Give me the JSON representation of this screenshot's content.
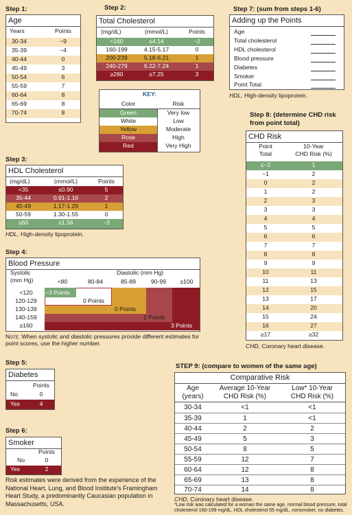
{
  "step1": {
    "heading": "Step 1:",
    "title": "Age",
    "col_years": "Years",
    "col_points": "Points",
    "rows": [
      {
        "range": "30-34",
        "points": "−9"
      },
      {
        "range": "35-39",
        "points": "−4"
      },
      {
        "range": "40-44",
        "points": "0"
      },
      {
        "range": "45-49",
        "points": "3"
      },
      {
        "range": "50-54",
        "points": "6"
      },
      {
        "range": "55-59",
        "points": "7"
      },
      {
        "range": "60-64",
        "points": "8"
      },
      {
        "range": "65-69",
        "points": "8"
      },
      {
        "range": "70-74",
        "points": "8"
      }
    ]
  },
  "step2": {
    "heading": "Step 2:",
    "title": "Total Cholesterol",
    "col_mgdl": "(mg/dL)",
    "col_mmol": "(mmol/L)",
    "col_points": "Points",
    "rows": [
      {
        "mgdl": "<160",
        "mmol": "≤4.14",
        "points": "−2",
        "color": "green"
      },
      {
        "mgdl": "160-199",
        "mmol": "4.15-5.17",
        "points": "0",
        "color": "white"
      },
      {
        "mgdl": "200-239",
        "mmol": "5.18-6.21",
        "points": "1",
        "color": "yellow"
      },
      {
        "mgdl": "240-279",
        "mmol": "6.22-7.24",
        "points": "1",
        "color": "rose"
      },
      {
        "mgdl": "≥280",
        "mmol": "≥7.25",
        "points": "3",
        "color": "red"
      }
    ]
  },
  "key": {
    "title": "KEY:",
    "col_color": "Color",
    "col_risk": "Risk",
    "rows": [
      {
        "color": "Green",
        "risk": "Very low"
      },
      {
        "color": "White",
        "risk": "Low"
      },
      {
        "color": "Yellow",
        "risk": "Moderate"
      },
      {
        "color": "Rose",
        "risk": "High"
      },
      {
        "color": "Red",
        "risk": "Very High"
      }
    ]
  },
  "step3": {
    "heading": "Step 3:",
    "title": "HDL Cholesterol",
    "col_mgdl": "(mg/dL)",
    "col_mmol": "(mmol/L)",
    "col_points": "Points",
    "rows": [
      {
        "mgdl": "<35",
        "mmol": "≤0.90",
        "points": "5",
        "color": "red"
      },
      {
        "mgdl": "35-44",
        "mmol": "0.91-1.16",
        "points": "2",
        "color": "rose"
      },
      {
        "mgdl": "45-49",
        "mmol": "1.17-1.29",
        "points": "1",
        "color": "yellow"
      },
      {
        "mgdl": "50-59",
        "mmol": "1.30-1.55",
        "points": "0",
        "color": "white"
      },
      {
        "mgdl": "≥60",
        "mmol": "≥1.56",
        "points": "−3",
        "color": "green"
      }
    ],
    "caption_abbr": "HDL,",
    "caption_text": " High-density lipoprotein."
  },
  "step4": {
    "heading": "Step 4:",
    "title": "Blood Pressure",
    "systolic_label_1": "Systolic",
    "systolic_label_2": "(mm Hg)",
    "diastolic_label": "Diastolic (mm Hg)",
    "diastolic_cols": [
      "<80",
      "80-84",
      "85-89",
      "90-99",
      "≥100"
    ],
    "systolic_rows": [
      "<120",
      "120-129",
      "130-139",
      "140-159",
      "≥160"
    ],
    "cells": [
      "−3 Points",
      "0 Points",
      "0 Points",
      "2 Points",
      "3 Points"
    ],
    "note_label": "Note:",
    "note_text": " When systolic and diastolic pressures provide different estimates for point scores, use the higher number."
  },
  "step5": {
    "heading": "Step 5:",
    "title": "Diabetes",
    "col_points": "Points",
    "rows": [
      {
        "label": "No",
        "points": "0"
      },
      {
        "label": "Yes",
        "points": "4"
      }
    ]
  },
  "step6": {
    "heading": "Step 6:",
    "title": "Smoker",
    "col_points": "Points",
    "rows": [
      {
        "label": "No",
        "points": "0"
      },
      {
        "label": "Yes",
        "points": "2"
      }
    ]
  },
  "footnote": "Risk estimates were derived from the experience of the National Heart, Lung, and Blood Institute’s Framingham Heart Study, a predominantly Caucasian population in Massachusetts, USA.",
  "step7": {
    "heading": "Step 7: (sum from steps 1-6)",
    "title": "Adding up the Points",
    "items": [
      "Age",
      "Total cholesterol",
      "HDL cholesterol",
      "Blood pressure",
      "Diabetes",
      "Smoker",
      "Point Total"
    ],
    "caption_abbr": "HDL,",
    "caption_text": " High-density lipoprotein."
  },
  "step8": {
    "heading_1": "Step 8: (determine CHD risk",
    "heading_2": "from point total)",
    "title": "CHD Risk",
    "col_point_1": "Point",
    "col_point_2": "Total",
    "col_risk_1": "10-Year",
    "col_risk_2": "CHD Risk (%)",
    "rows": [
      {
        "total": "≤−2",
        "risk": "1"
      },
      {
        "total": "−1",
        "risk": "2"
      },
      {
        "total": "0",
        "risk": "2"
      },
      {
        "total": "1",
        "risk": "2"
      },
      {
        "total": "2",
        "risk": "3"
      },
      {
        "total": "3",
        "risk": "3"
      },
      {
        "total": "4",
        "risk": "4"
      },
      {
        "total": "5",
        "risk": "5"
      },
      {
        "total": "6",
        "risk": "6"
      },
      {
        "total": "7",
        "risk": "7"
      },
      {
        "total": "8",
        "risk": "8"
      },
      {
        "total": "9",
        "risk": "9"
      },
      {
        "total": "10",
        "risk": "11"
      },
      {
        "total": "11",
        "risk": "13"
      },
      {
        "total": "12",
        "risk": "15"
      },
      {
        "total": "13",
        "risk": "17"
      },
      {
        "total": "14",
        "risk": "20"
      },
      {
        "total": "15",
        "risk": "24"
      },
      {
        "total": "16",
        "risk": "27"
      },
      {
        "total": "≥17",
        "risk": "≥32"
      }
    ],
    "caption_abbr": "CHD,",
    "caption_text": " Coronary heart disease."
  },
  "step9": {
    "heading": "STEP 9: (compare to women of the same age)",
    "title": "Comparative Risk",
    "col_age_1": "Age",
    "col_age_2": "(years)",
    "col_avg_1": "Average 10-Year",
    "col_avg_2": "CHD Risk (%)",
    "col_low_1": "Low* 10-Year",
    "col_low_2": "CHD Risk (%)",
    "rows": [
      {
        "age": "30-34",
        "avg": "<1",
        "low": "<1"
      },
      {
        "age": "35-39",
        "avg": "1",
        "low": "<1"
      },
      {
        "age": "40-44",
        "avg": "2",
        "low": "2"
      },
      {
        "age": "45-49",
        "avg": "5",
        "low": "3"
      },
      {
        "age": "50-54",
        "avg": "8",
        "low": "5"
      },
      {
        "age": "55-59",
        "avg": "12",
        "low": "7"
      },
      {
        "age": "60-64",
        "avg": "12",
        "low": "8"
      },
      {
        "age": "65-69",
        "avg": "13",
        "low": "8"
      },
      {
        "age": "70-74",
        "avg": "14",
        "low": "8"
      }
    ],
    "caption_abbr": "CHD,",
    "caption_text": " Coronary heart disease.",
    "footnote": "*Low risk was calculated for a woman the same age, normal blood pressure, total cholesterol 160-199 mg/dL, HDL cholesterol 55 mg/dL, nonsmoker, no diabetes."
  },
  "colors": {
    "green": "#7aa876",
    "white": "#ffffff",
    "yellow": "#d8a034",
    "rose": "#a8474a",
    "red": "#8e1b24",
    "background": "#f7e3bd"
  }
}
